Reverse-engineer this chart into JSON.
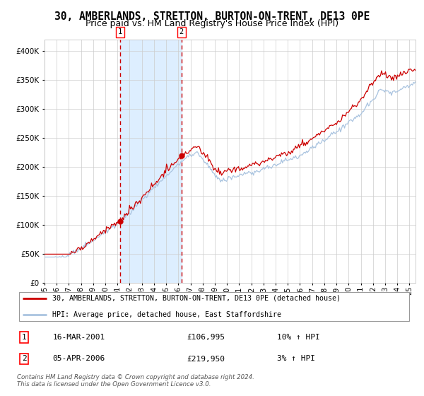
{
  "title": "30, AMBERLANDS, STRETTON, BURTON-ON-TRENT, DE13 0PE",
  "subtitle": "Price paid vs. HM Land Registry's House Price Index (HPI)",
  "title_fontsize": 10.5,
  "subtitle_fontsize": 9,
  "hpi_color": "#aac4e0",
  "price_color": "#cc0000",
  "marker_color": "#cc0000",
  "sale1_date_num": 2001.21,
  "sale1_price": 106995,
  "sale2_date_num": 2006.26,
  "sale2_price": 219950,
  "sale1_date_str": "16-MAR-2001",
  "sale2_date_str": "05-APR-2006",
  "sale1_hpi_pct": "10% ↑ HPI",
  "sale2_hpi_pct": "3% ↑ HPI",
  "legend_line1": "30, AMBERLANDS, STRETTON, BURTON-ON-TRENT, DE13 0PE (detached house)",
  "legend_line2": "HPI: Average price, detached house, East Staffordshire",
  "footer_line1": "Contains HM Land Registry data © Crown copyright and database right 2024.",
  "footer_line2": "This data is licensed under the Open Government Licence v3.0.",
  "ylim_min": 0,
  "ylim_max": 420000,
  "start_year": 1995.0,
  "end_year": 2025.5,
  "background_color": "#ffffff",
  "grid_color": "#cccccc",
  "shade_color": "#ddeeff"
}
